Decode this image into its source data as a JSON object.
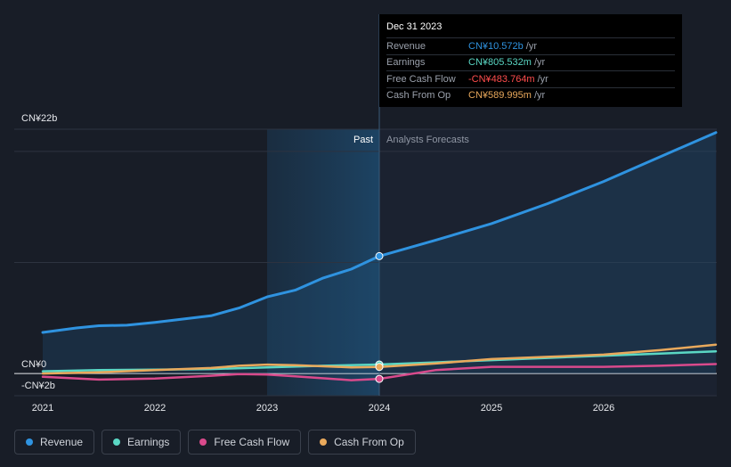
{
  "chart_data": {
    "type": "line",
    "title": "",
    "y_axis": {
      "label_top": "CN¥22b",
      "label_zero": "CN¥0",
      "label_bottom": "-CN¥2b",
      "ylim": [
        -2,
        22
      ]
    },
    "x_axis": {
      "ticks": [
        "2021",
        "2022",
        "2023",
        "2024",
        "2025",
        "2026"
      ],
      "xlim": [
        2021.0,
        2027.0
      ]
    },
    "regions": {
      "past_label": "Past",
      "forecast_label": "Analysts Forecasts",
      "split_x": 2024.0
    },
    "series": [
      {
        "name": "Revenue",
        "color": "#2f93e0",
        "points": [
          [
            2021.0,
            3.7
          ],
          [
            2021.3,
            4.1
          ],
          [
            2021.5,
            4.3
          ],
          [
            2021.75,
            4.35
          ],
          [
            2022.0,
            4.6
          ],
          [
            2022.25,
            4.9
          ],
          [
            2022.5,
            5.2
          ],
          [
            2022.75,
            5.9
          ],
          [
            2023.0,
            6.9
          ],
          [
            2023.25,
            7.5
          ],
          [
            2023.5,
            8.6
          ],
          [
            2023.75,
            9.4
          ],
          [
            2024.0,
            10.572
          ],
          [
            2024.5,
            12.0
          ],
          [
            2025.0,
            13.5
          ],
          [
            2025.5,
            15.3
          ],
          [
            2026.0,
            17.3
          ],
          [
            2026.5,
            19.5
          ],
          [
            2027.0,
            21.7
          ]
        ]
      },
      {
        "name": "Earnings",
        "color": "#5ad7c4",
        "points": [
          [
            2021.0,
            0.2
          ],
          [
            2021.5,
            0.3
          ],
          [
            2022.0,
            0.35
          ],
          [
            2022.5,
            0.4
          ],
          [
            2023.0,
            0.55
          ],
          [
            2023.5,
            0.7
          ],
          [
            2024.0,
            0.806
          ],
          [
            2024.5,
            1.0
          ],
          [
            2025.0,
            1.2
          ],
          [
            2025.5,
            1.4
          ],
          [
            2026.0,
            1.6
          ],
          [
            2026.5,
            1.8
          ],
          [
            2027.0,
            2.0
          ]
        ]
      },
      {
        "name": "Free Cash Flow",
        "color": "#d94a8c",
        "points": [
          [
            2021.0,
            -0.3
          ],
          [
            2021.5,
            -0.55
          ],
          [
            2022.0,
            -0.45
          ],
          [
            2022.5,
            -0.2
          ],
          [
            2022.75,
            -0.05
          ],
          [
            2023.0,
            -0.1
          ],
          [
            2023.25,
            -0.25
          ],
          [
            2023.75,
            -0.6
          ],
          [
            2024.0,
            -0.484
          ],
          [
            2024.5,
            0.3
          ],
          [
            2025.0,
            0.6
          ],
          [
            2025.5,
            0.6
          ],
          [
            2026.0,
            0.6
          ],
          [
            2026.5,
            0.7
          ],
          [
            2027.0,
            0.85
          ]
        ]
      },
      {
        "name": "Cash From Op",
        "color": "#e9a95c",
        "points": [
          [
            2021.0,
            0.0
          ],
          [
            2021.5,
            0.1
          ],
          [
            2022.0,
            0.3
          ],
          [
            2022.5,
            0.5
          ],
          [
            2022.75,
            0.7
          ],
          [
            2023.0,
            0.8
          ],
          [
            2023.25,
            0.75
          ],
          [
            2023.75,
            0.55
          ],
          [
            2024.0,
            0.59
          ],
          [
            2024.5,
            0.9
          ],
          [
            2025.0,
            1.3
          ],
          [
            2025.5,
            1.5
          ],
          [
            2026.0,
            1.7
          ],
          [
            2026.5,
            2.1
          ],
          [
            2027.0,
            2.6
          ]
        ]
      }
    ],
    "highlight_x": 2024.0,
    "tooltip": {
      "date": "Dec 31 2023",
      "rows": [
        {
          "label": "Revenue",
          "value": "CN¥10.572b",
          "unit": "/yr",
          "color": "#2f93e0"
        },
        {
          "label": "Earnings",
          "value": "CN¥805.532m",
          "unit": "/yr",
          "color": "#5ad7c4"
        },
        {
          "label": "Free Cash Flow",
          "value": "-CN¥483.764m",
          "unit": "/yr",
          "color": "#ff4d4d"
        },
        {
          "label": "Cash From Op",
          "value": "CN¥589.995m",
          "unit": "/yr",
          "color": "#e9a95c"
        }
      ]
    }
  },
  "legend": [
    {
      "label": "Revenue",
      "color": "#2f93e0"
    },
    {
      "label": "Earnings",
      "color": "#5ad7c4"
    },
    {
      "label": "Free Cash Flow",
      "color": "#d94a8c"
    },
    {
      "label": "Cash From Op",
      "color": "#e9a95c"
    }
  ]
}
